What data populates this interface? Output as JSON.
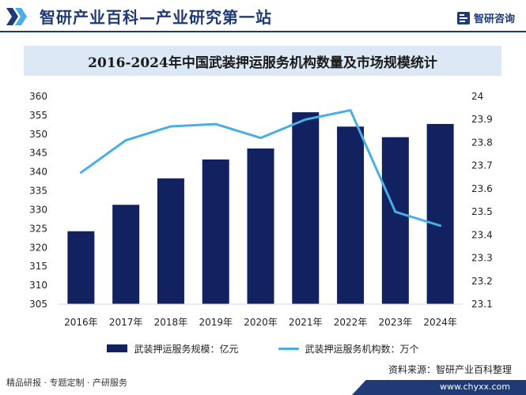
{
  "header": {
    "title": "智研产业百科—产业研究第一站",
    "logo_text": "智研咨询"
  },
  "chart_data": {
    "type": "bar+line",
    "title": "2016-2024年中国武装押运服务机构数量及市场规模统计",
    "categories": [
      "2016年",
      "2017年",
      "2018年",
      "2019年",
      "2020年",
      "2021年",
      "2022年",
      "2023年",
      "2024年"
    ],
    "series": [
      {
        "name": "武装押运服务规模：亿元",
        "type": "bar",
        "axis": "left",
        "color": "#12215f",
        "values": [
          324.3,
          331.3,
          338.3,
          343.3,
          346.2,
          355.8,
          352.0,
          349.2,
          352.7
        ]
      },
      {
        "name": "武装押运服务机构数：万个",
        "type": "line",
        "axis": "right",
        "color": "#4aaee6",
        "values": [
          23.67,
          23.81,
          23.87,
          23.88,
          23.82,
          23.9,
          23.94,
          23.5,
          23.44
        ]
      }
    ],
    "y_left": {
      "min": 305,
      "max": 360,
      "step": 5
    },
    "y_right": {
      "min": 23.1,
      "max": 24.0,
      "step": 0.1
    },
    "grid": false,
    "legend_position": "bottom"
  },
  "footer": {
    "source": "资料来源：智研产业百科整理",
    "tagline": "精品研报 · 专题定制 · 产研服务",
    "url": "www.chyxx.com"
  }
}
